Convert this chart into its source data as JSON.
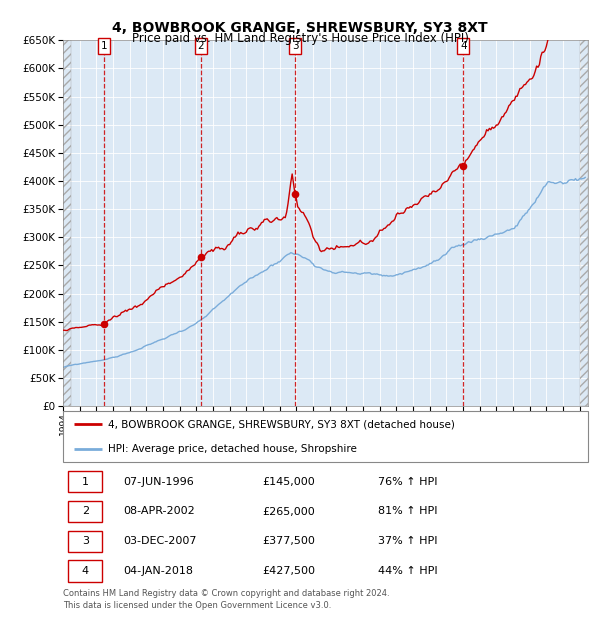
{
  "title": "4, BOWBROOK GRANGE, SHREWSBURY, SY3 8XT",
  "subtitle": "Price paid vs. HM Land Registry's House Price Index (HPI)",
  "title_fontsize": 10,
  "subtitle_fontsize": 8.5,
  "plot_bg_color": "#dce9f5",
  "ylim": [
    0,
    650000
  ],
  "yticks": [
    0,
    50000,
    100000,
    150000,
    200000,
    250000,
    300000,
    350000,
    400000,
    450000,
    500000,
    550000,
    600000,
    650000
  ],
  "xlim_start": 1994.0,
  "xlim_end": 2025.5,
  "sale_dates": [
    1996.44,
    2002.27,
    2007.92,
    2018.02
  ],
  "sale_prices": [
    145000,
    265000,
    377500,
    427500
  ],
  "sale_labels": [
    "1",
    "2",
    "3",
    "4"
  ],
  "legend_line1": "4, BOWBROOK GRANGE, SHREWSBURY, SY3 8XT (detached house)",
  "legend_line2": "HPI: Average price, detached house, Shropshire",
  "table_data": [
    [
      "1",
      "07-JUN-1996",
      "£145,000",
      "76% ↑ HPI"
    ],
    [
      "2",
      "08-APR-2002",
      "£265,000",
      "81% ↑ HPI"
    ],
    [
      "3",
      "03-DEC-2007",
      "£377,500",
      "37% ↑ HPI"
    ],
    [
      "4",
      "04-JAN-2018",
      "£427,500",
      "44% ↑ HPI"
    ]
  ],
  "footer": "Contains HM Land Registry data © Crown copyright and database right 2024.\nThis data is licensed under the Open Government Licence v3.0.",
  "red_line_color": "#cc0000",
  "blue_line_color": "#7aacda",
  "dashed_line_color": "#cc0000",
  "marker_color": "#cc0000",
  "hpi_seed": 12345,
  "red_seed": 99
}
